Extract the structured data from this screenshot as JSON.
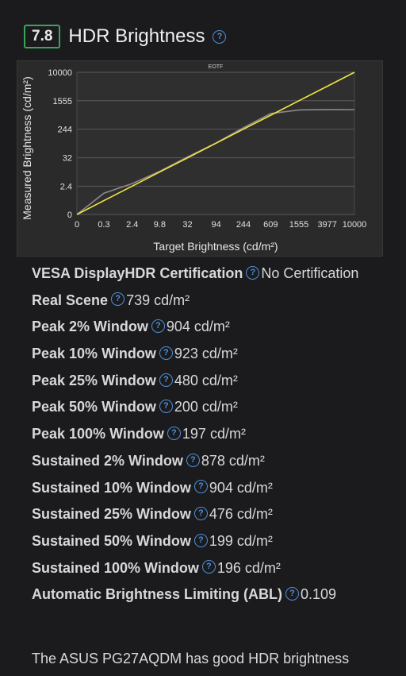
{
  "header": {
    "score": "7.8",
    "title": "HDR Brightness",
    "help_icon": "question-circle-icon"
  },
  "chart_data": {
    "type": "line",
    "title": "EOTF",
    "xlabel": "Target Brightness (cd/m²)",
    "ylabel": "Measured Brightness (cd/m²)",
    "x_ticks": [
      "0",
      "0.3",
      "2.4",
      "9.8",
      "32",
      "94",
      "244",
      "609",
      "1555",
      "3977",
      "10000"
    ],
    "y_ticks": [
      "0",
      "2.4",
      "32",
      "244",
      "1555",
      "10000"
    ],
    "scale": "PQ (perceptual)",
    "grid": true,
    "series": [
      {
        "name": "",
        "color": "#f0e442",
        "x": [
          0,
          0.3,
          2.4,
          9.8,
          32,
          94,
          244,
          609,
          1555,
          3977,
          10000
        ],
        "y": [
          0,
          0.3,
          2.4,
          9.8,
          32,
          94,
          244,
          609,
          1555,
          3977,
          10000
        ]
      },
      {
        "name": "",
        "color": "#8a8a8a",
        "x": [
          0,
          0.3,
          2.4,
          9.8,
          32,
          94,
          244,
          609,
          1555,
          3977,
          10000
        ],
        "y": [
          0,
          1.0,
          3.2,
          10.5,
          34,
          96,
          270,
          680,
          860,
          880,
          878
        ]
      }
    ]
  },
  "properties": [
    {
      "label": "VESA DisplayHDR Certification",
      "value": "No Certification"
    },
    {
      "label": "Real Scene",
      "value": "739 cd/m²"
    },
    {
      "label": "Peak 2% Window",
      "value": "904 cd/m²"
    },
    {
      "label": "Peak 10% Window",
      "value": "923 cd/m²"
    },
    {
      "label": "Peak 25% Window",
      "value": "480 cd/m²"
    },
    {
      "label": "Peak 50% Window",
      "value": "200 cd/m²"
    },
    {
      "label": "Peak 100% Window",
      "value": "197 cd/m²"
    },
    {
      "label": "Sustained 2% Window",
      "value": "878 cd/m²"
    },
    {
      "label": "Sustained 10% Window",
      "value": "904 cd/m²"
    },
    {
      "label": "Sustained 25% Window",
      "value": "476 cd/m²"
    },
    {
      "label": "Sustained 50% Window",
      "value": "199 cd/m²"
    },
    {
      "label": "Sustained 100% Window",
      "value": "196 cd/m²"
    },
    {
      "label": "Automatic Brightness Limiting (ABL)",
      "value": "0.109"
    }
  ],
  "description": "The ASUS PG27AQDM has good HDR brightness",
  "colors": {
    "accent": "#4f8fd6",
    "score_border": "#3ba55c",
    "eotf_target": "#f0e442",
    "measured": "#8a8a8a"
  }
}
